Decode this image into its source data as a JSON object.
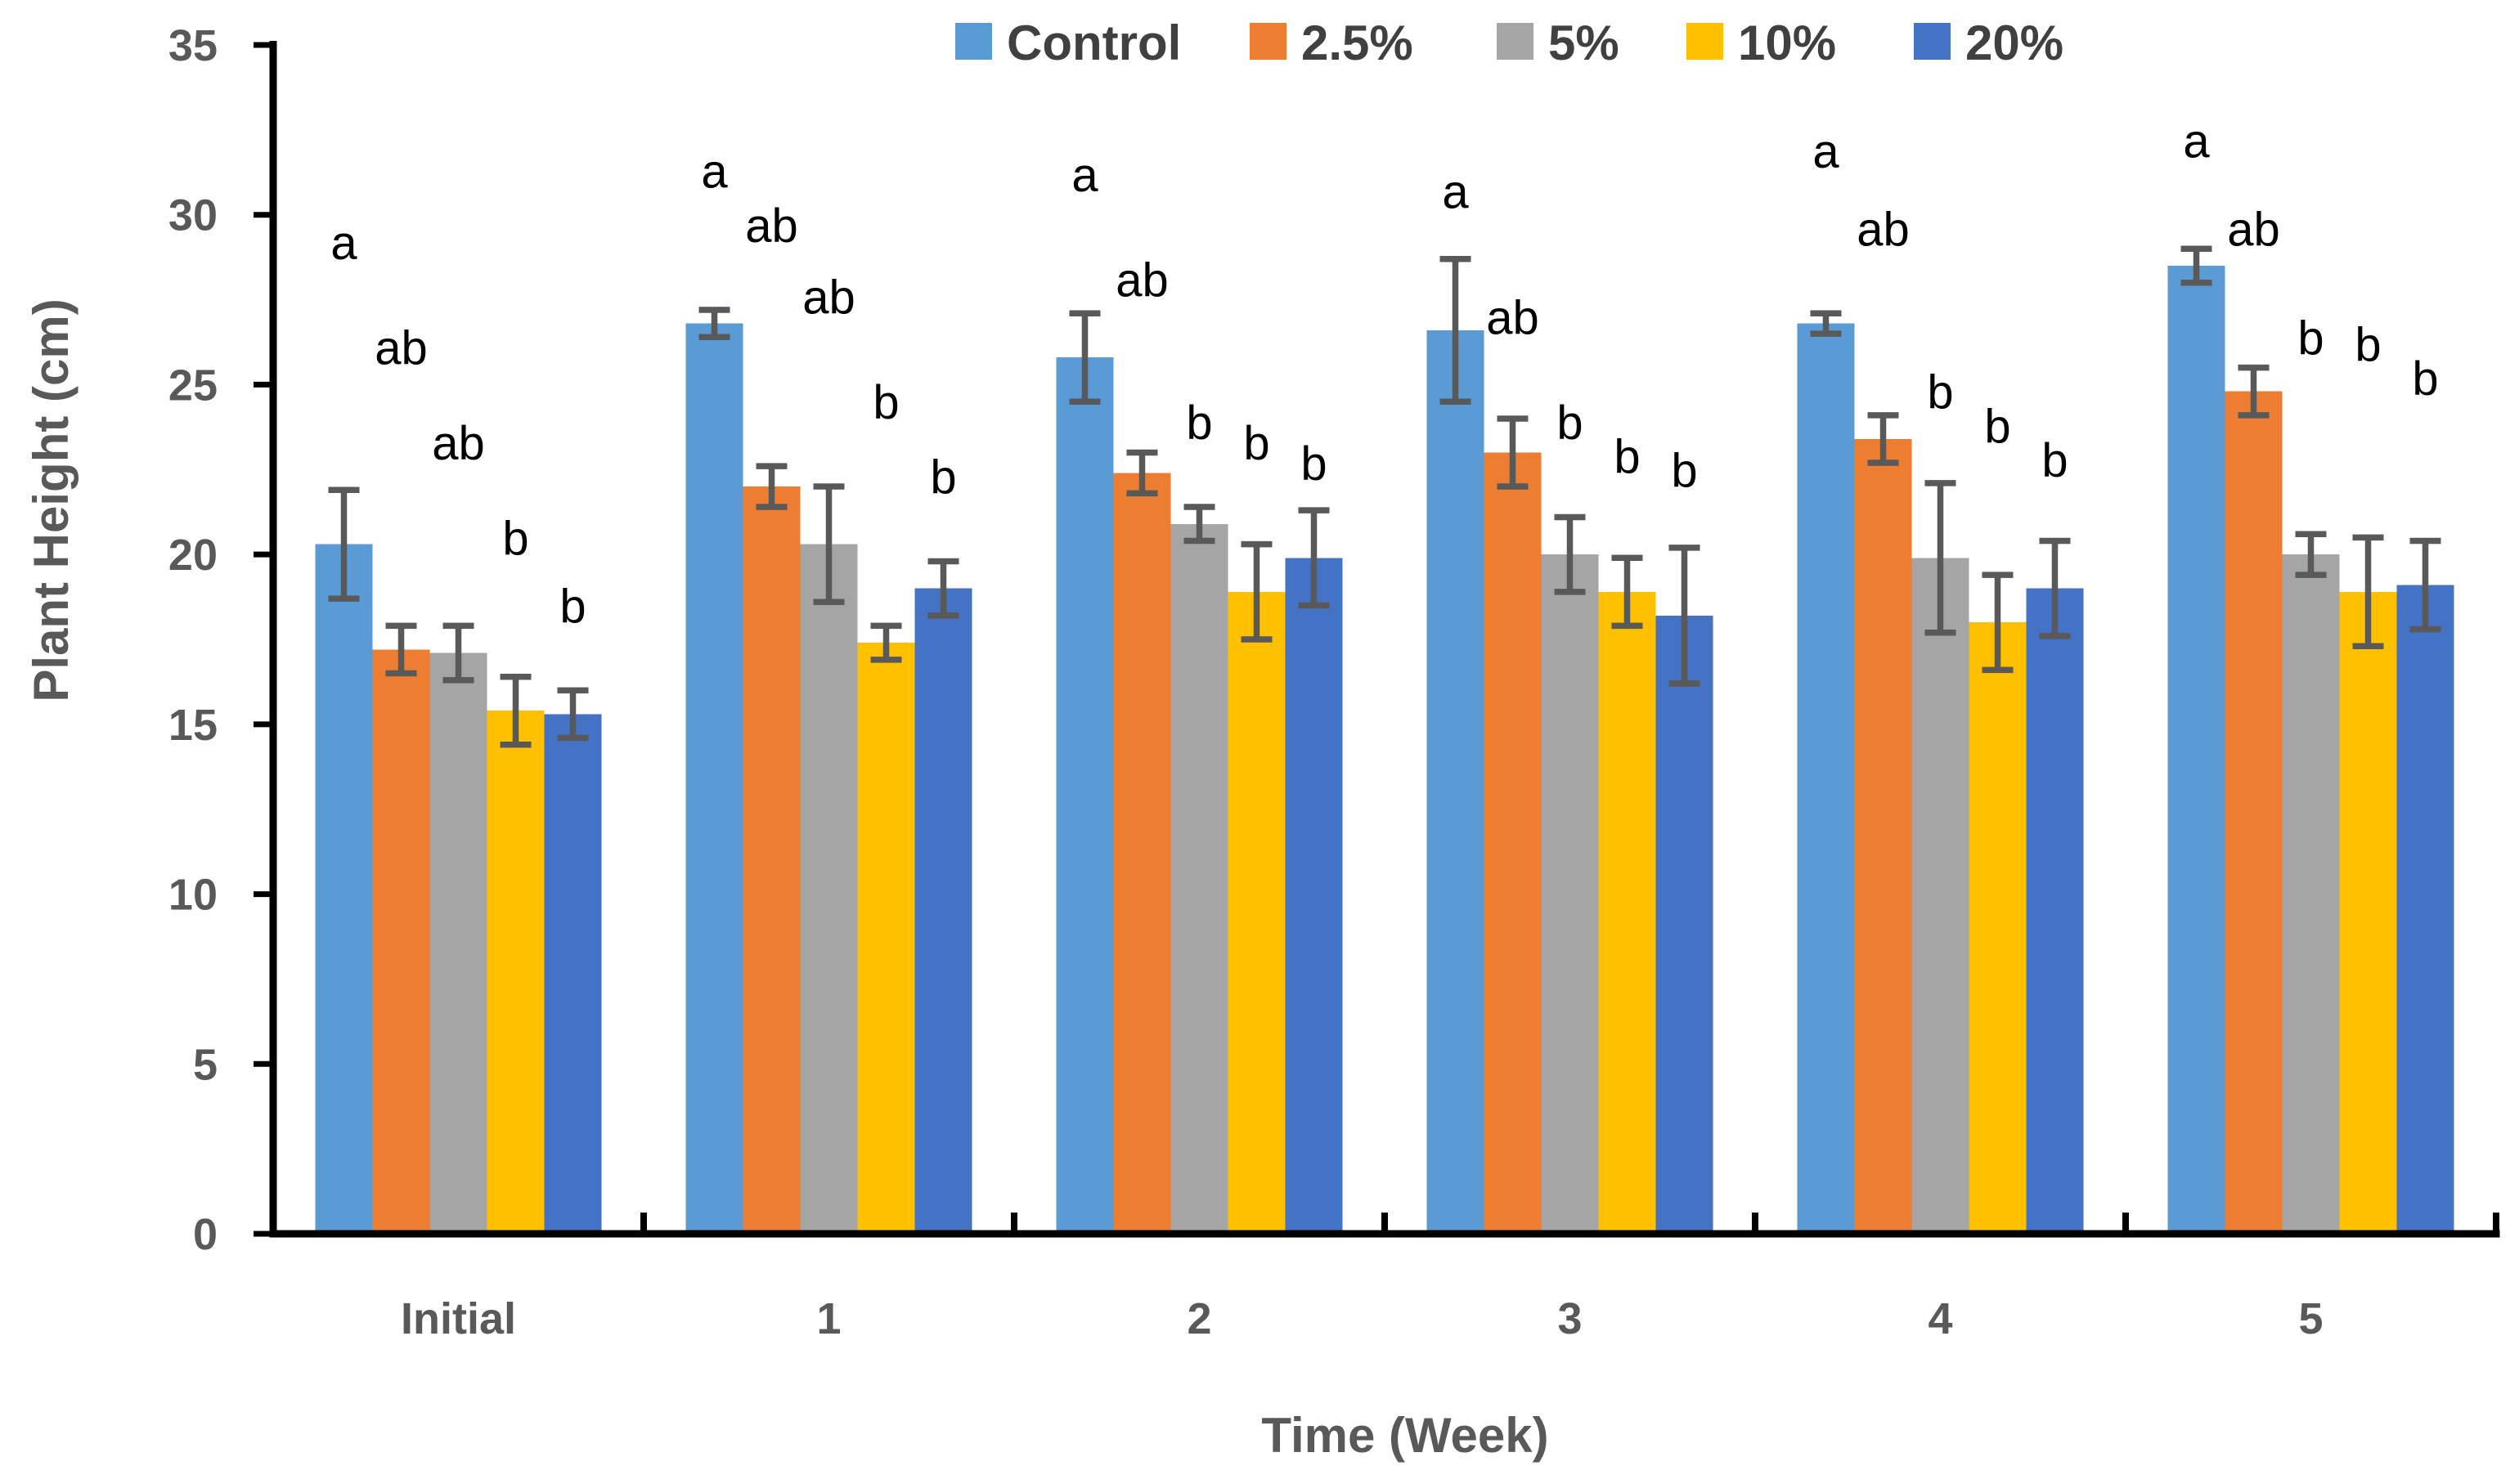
{
  "chart_data": {
    "type": "bar",
    "title": "",
    "xlabel": "Time (Week)",
    "ylabel": "Plant Height (cm)",
    "ylim": [
      0,
      35
    ],
    "ytick_step": 5,
    "grid": false,
    "legend_position": "top-center",
    "background_color": "#ffffff",
    "axis_color": "#000000",
    "tick_label_color": "#595959",
    "axis_title_color": "#595959",
    "legend_text_color": "#404040",
    "error_bar_color": "#595959",
    "sig_letter_color": "#000000",
    "categories": [
      "Initial",
      "1",
      "2",
      "3",
      "4",
      "5"
    ],
    "series": [
      {
        "name": "Control",
        "color": "#5B9BD5",
        "values": [
          20.3,
          26.8,
          25.8,
          26.6,
          26.8,
          28.5
        ],
        "errors": [
          1.6,
          0.4,
          1.3,
          2.1,
          0.3,
          0.5
        ],
        "sig_letters": [
          "a",
          "a",
          "a",
          "a",
          "a",
          "a"
        ],
        "sig_letter_y": [
          29.2,
          31.3,
          31.2,
          30.7,
          31.9,
          32.2
        ]
      },
      {
        "name": "2.5%",
        "color": "#ED7D31",
        "values": [
          17.2,
          22.0,
          22.4,
          23.0,
          23.4,
          24.8
        ],
        "errors": [
          0.7,
          0.6,
          0.6,
          1.0,
          0.7,
          0.7
        ],
        "sig_letters": [
          "ab",
          "ab",
          "ab",
          "ab",
          "ab",
          "ab"
        ],
        "sig_letter_y": [
          26.1,
          29.7,
          28.1,
          27.0,
          29.6,
          29.6
        ]
      },
      {
        "name": "5%",
        "color": "#A5A5A5",
        "values": [
          17.1,
          20.3,
          20.9,
          20.0,
          19.9,
          20.0
        ],
        "errors": [
          0.8,
          1.7,
          0.5,
          1.1,
          2.2,
          0.6
        ],
        "sig_letters": [
          "ab",
          "ab",
          "b",
          "b",
          "b",
          "b"
        ],
        "sig_letter_y": [
          23.3,
          27.6,
          23.9,
          23.9,
          24.8,
          26.4
        ]
      },
      {
        "name": "10%",
        "color": "#FFC000",
        "values": [
          15.4,
          17.4,
          18.9,
          18.9,
          18.0,
          18.9
        ],
        "errors": [
          1.0,
          0.5,
          1.4,
          1.0,
          1.4,
          1.6
        ],
        "sig_letters": [
          "b",
          "b",
          "b",
          "b",
          "b",
          "b"
        ],
        "sig_letter_y": [
          20.5,
          24.5,
          23.3,
          22.9,
          23.8,
          26.2
        ]
      },
      {
        "name": "20%",
        "color": "#4472C4",
        "values": [
          15.3,
          19.0,
          19.9,
          18.2,
          19.0,
          19.1
        ],
        "errors": [
          0.7,
          0.8,
          1.4,
          2.0,
          1.4,
          1.3
        ],
        "sig_letters": [
          "b",
          "b",
          "b",
          "b",
          "b",
          "b"
        ],
        "sig_letter_y": [
          18.5,
          22.3,
          22.7,
          22.5,
          22.8,
          25.2
        ]
      }
    ],
    "yticks": [
      0,
      5,
      10,
      15,
      20,
      25,
      30,
      35
    ]
  }
}
